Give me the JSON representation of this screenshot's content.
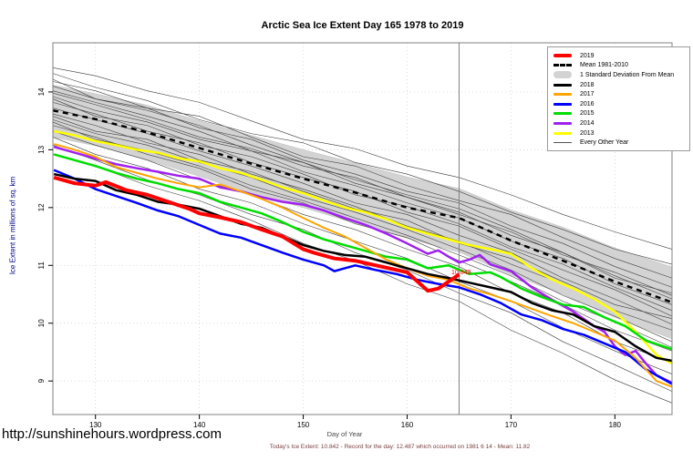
{
  "page": {
    "title": "Arctic Sea Ice Extent Day 165 1978 to 2019",
    "url_text": "http://sunshinehours.wordpress.com",
    "caption": "Today's Ice Extent: 10.842  - Record for the day: 12.487 which occurred on 1981 6 14  - Mean: 11.82"
  },
  "legend": {
    "items": [
      {
        "label": "2019",
        "kind": "thick",
        "color": "#ff0000"
      },
      {
        "label": "Mean 1981-2010",
        "kind": "dashed",
        "color": "#000000"
      },
      {
        "label": "1 Standard Deviation From Mean",
        "kind": "band",
        "color": "#d3d3d3"
      },
      {
        "label": "2018",
        "kind": "line",
        "color": "#000000"
      },
      {
        "label": "2017",
        "kind": "line",
        "color": "#ffa500"
      },
      {
        "label": "2016",
        "kind": "line",
        "color": "#0000ff"
      },
      {
        "label": "2015",
        "kind": "line",
        "color": "#00dd00"
      },
      {
        "label": "2014",
        "kind": "line",
        "color": "#a020f0"
      },
      {
        "label": "2013",
        "kind": "line",
        "color": "#ffff00"
      },
      {
        "label": "Every Other Year",
        "kind": "thin",
        "color": "#555555"
      }
    ]
  },
  "chart_data": {
    "type": "line",
    "title": "Arctic Sea Ice Extent Day 165 1978 to 2019",
    "xlabel": "Day of Year",
    "ylabel": "Ice Extent in millions of sq. km",
    "xlim": [
      125.9,
      185.5
    ],
    "ylim": [
      8.42,
      14.85
    ],
    "xticks": [
      130,
      140,
      150,
      160,
      170,
      180
    ],
    "yticks": [
      9,
      10,
      11,
      12,
      13,
      14
    ],
    "grid": "dotted",
    "legend_position": "top-right",
    "vline": {
      "x": 165,
      "color": "#808080"
    },
    "annotation": {
      "text": "10.842",
      "x": 165.2,
      "y": 10.88,
      "color": "#ff0000"
    },
    "band": {
      "label": "1 Standard Deviation From Mean",
      "color": "#d3d3d3",
      "x": [
        125.9,
        130,
        135,
        140,
        145,
        150,
        155,
        160,
        165,
        170,
        175,
        180,
        185.5
      ],
      "upper": [
        14.12,
        13.97,
        13.77,
        13.5,
        13.25,
        13.0,
        12.77,
        12.53,
        12.33,
        11.96,
        11.66,
        11.3,
        10.97
      ],
      "lower": [
        13.22,
        13.07,
        12.83,
        12.54,
        12.25,
        12.0,
        11.73,
        11.47,
        11.23,
        10.84,
        10.5,
        10.1,
        9.73
      ]
    },
    "series": [
      {
        "name": "2019",
        "color": "#ff0000",
        "width": 4,
        "dash": "",
        "x": [
          126,
          128,
          130,
          131,
          133,
          135,
          137,
          139,
          140,
          142,
          144,
          146,
          148,
          150,
          151,
          153,
          155,
          157,
          159,
          160,
          161,
          162,
          163,
          164,
          165
        ],
        "y": [
          12.52,
          12.42,
          12.38,
          12.44,
          12.3,
          12.22,
          12.1,
          11.98,
          11.9,
          11.83,
          11.75,
          11.62,
          11.5,
          11.28,
          11.22,
          11.12,
          11.08,
          11.0,
          10.92,
          10.88,
          10.72,
          10.56,
          10.6,
          10.72,
          10.842
        ]
      },
      {
        "name": "Mean 1981-2010",
        "color": "#000000",
        "width": 2.5,
        "dash": "6 5",
        "x": [
          125.9,
          130,
          135,
          140,
          145,
          150,
          155,
          160,
          165,
          170,
          175,
          180,
          185.5
        ],
        "y": [
          13.68,
          13.53,
          13.3,
          13.03,
          12.76,
          12.5,
          12.26,
          12.0,
          11.82,
          11.43,
          11.08,
          10.72,
          10.36
        ]
      },
      {
        "name": "2018",
        "color": "#000000",
        "width": 2.5,
        "dash": "",
        "x": [
          126,
          128,
          130,
          132,
          134,
          136,
          138,
          140,
          142,
          144,
          146,
          148,
          150,
          152,
          154,
          156,
          158,
          160,
          162,
          164,
          166,
          168,
          170,
          172,
          174,
          176,
          178,
          180,
          182,
          184,
          185.5
        ],
        "y": [
          12.58,
          12.5,
          12.46,
          12.3,
          12.22,
          12.1,
          12.05,
          11.98,
          11.85,
          11.72,
          11.65,
          11.5,
          11.35,
          11.25,
          11.18,
          11.15,
          11.05,
          10.95,
          10.85,
          10.78,
          10.7,
          10.62,
          10.54,
          10.35,
          10.22,
          10.15,
          9.95,
          9.85,
          9.6,
          9.4,
          9.35
        ]
      },
      {
        "name": "2017",
        "color": "#ffa500",
        "width": 2,
        "dash": "",
        "x": [
          126,
          128,
          130,
          132,
          134,
          136,
          138,
          140,
          142,
          144,
          146,
          148,
          150,
          152,
          154,
          156,
          158,
          160,
          162,
          164,
          166,
          168,
          170,
          172,
          174,
          176,
          178,
          180,
          182,
          184,
          185.5
        ],
        "y": [
          13.1,
          13.0,
          12.88,
          12.7,
          12.6,
          12.5,
          12.42,
          12.35,
          12.4,
          12.28,
          12.15,
          12.0,
          11.82,
          11.65,
          11.5,
          11.3,
          11.1,
          10.95,
          10.82,
          10.75,
          10.6,
          10.5,
          10.38,
          10.25,
          10.12,
          10.0,
          9.85,
          9.7,
          9.4,
          9.0,
          8.9
        ]
      },
      {
        "name": "2016",
        "color": "#0000ff",
        "width": 2.5,
        "dash": "",
        "x": [
          126,
          128,
          130,
          132,
          134,
          136,
          138,
          140,
          142,
          144,
          146,
          148,
          150,
          152,
          153,
          155,
          157,
          159,
          161,
          163,
          165,
          167,
          169,
          171,
          173,
          175,
          177,
          179,
          181,
          183,
          185.5
        ],
        "y": [
          12.65,
          12.5,
          12.32,
          12.2,
          12.08,
          11.95,
          11.85,
          11.7,
          11.55,
          11.48,
          11.35,
          11.22,
          11.1,
          11.0,
          10.9,
          11.0,
          10.92,
          10.85,
          10.75,
          10.68,
          10.62,
          10.5,
          10.35,
          10.15,
          10.05,
          9.9,
          9.8,
          9.65,
          9.5,
          9.2,
          8.95
        ]
      },
      {
        "name": "2015",
        "color": "#00dd00",
        "width": 2.5,
        "dash": "",
        "x": [
          126,
          128,
          130,
          132,
          134,
          136,
          138,
          140,
          142,
          144,
          146,
          148,
          150,
          152,
          154,
          156,
          158,
          160,
          162,
          164,
          166,
          168,
          169,
          171,
          173,
          175,
          177,
          179,
          181,
          183,
          185.5
        ],
        "y": [
          12.92,
          12.82,
          12.72,
          12.6,
          12.5,
          12.42,
          12.32,
          12.25,
          12.1,
          12.0,
          11.9,
          11.75,
          11.58,
          11.45,
          11.35,
          11.25,
          11.15,
          11.1,
          10.95,
          11.0,
          10.85,
          10.88,
          10.8,
          10.6,
          10.45,
          10.32,
          10.28,
          10.1,
          9.95,
          9.7,
          9.55
        ]
      },
      {
        "name": "2014",
        "color": "#a020f0",
        "width": 2.5,
        "dash": "",
        "x": [
          126,
          128,
          130,
          132,
          134,
          136,
          138,
          140,
          142,
          144,
          146,
          148,
          150,
          152,
          154,
          156,
          158,
          160,
          162,
          163,
          164,
          165,
          166,
          167,
          168,
          170,
          172,
          174,
          176,
          178,
          179,
          180,
          181,
          182,
          183,
          184,
          185.5
        ],
        "y": [
          13.05,
          12.95,
          12.85,
          12.75,
          12.68,
          12.62,
          12.55,
          12.5,
          12.35,
          12.28,
          12.18,
          12.1,
          12.05,
          11.95,
          11.82,
          11.7,
          11.55,
          11.38,
          11.2,
          11.26,
          11.15,
          11.05,
          11.1,
          11.18,
          11.02,
          10.9,
          10.62,
          10.4,
          10.2,
          9.95,
          9.85,
          9.6,
          9.45,
          9.52,
          9.3,
          9.1,
          8.97
        ]
      },
      {
        "name": "2013",
        "color": "#ffff00",
        "width": 2.5,
        "dash": "",
        "x": [
          126,
          128,
          130,
          132,
          134,
          136,
          138,
          140,
          142,
          144,
          146,
          148,
          150,
          152,
          154,
          156,
          158,
          160,
          162,
          164,
          166,
          168,
          170,
          172,
          174,
          176,
          178,
          180,
          182,
          184,
          185.5
        ],
        "y": [
          13.32,
          13.25,
          13.15,
          13.08,
          13.0,
          12.95,
          12.85,
          12.8,
          12.68,
          12.6,
          12.48,
          12.35,
          12.25,
          12.12,
          12.0,
          11.92,
          11.8,
          11.65,
          11.55,
          11.45,
          11.35,
          11.28,
          11.2,
          10.95,
          10.75,
          10.6,
          10.42,
          10.2,
          9.85,
          9.45,
          9.3
        ]
      }
    ],
    "every_other_year": {
      "label": "Every Other Year",
      "color": "#3c3c3c",
      "width": 0.6,
      "x": [
        125.9,
        130,
        135,
        140,
        145,
        150,
        155,
        160,
        165,
        170,
        175,
        180,
        185.5
      ],
      "lines": [
        [
          14.42,
          14.28,
          14.02,
          13.82,
          13.5,
          13.18,
          13.02,
          12.72,
          12.52,
          12.22,
          11.88,
          11.58,
          11.28
        ],
        [
          14.32,
          14.08,
          13.85,
          13.52,
          13.28,
          13.12,
          12.78,
          12.58,
          12.28,
          11.92,
          11.62,
          11.28,
          11.02
        ],
        [
          14.18,
          14.02,
          13.72,
          13.58,
          13.22,
          12.88,
          12.72,
          12.38,
          12.12,
          11.88,
          11.48,
          11.12,
          10.78
        ],
        [
          14.1,
          13.88,
          13.72,
          13.38,
          13.18,
          12.82,
          12.58,
          12.28,
          12.08,
          11.68,
          11.38,
          10.98,
          10.62
        ],
        [
          14.02,
          13.82,
          13.58,
          13.32,
          12.98,
          12.78,
          12.42,
          12.18,
          11.88,
          11.58,
          11.18,
          10.88,
          10.48
        ],
        [
          13.92,
          13.68,
          13.48,
          13.18,
          12.98,
          12.62,
          12.38,
          12.08,
          11.82,
          11.42,
          11.12,
          10.68,
          10.32
        ],
        [
          13.82,
          13.62,
          13.32,
          13.12,
          12.78,
          12.52,
          12.28,
          11.92,
          11.68,
          11.28,
          10.92,
          10.58,
          10.12
        ],
        [
          13.72,
          13.52,
          13.28,
          12.98,
          12.72,
          12.42,
          12.08,
          11.88,
          11.52,
          11.22,
          10.78,
          10.42,
          9.98
        ],
        [
          13.62,
          13.42,
          13.12,
          12.92,
          12.58,
          12.32,
          12.02,
          11.68,
          11.42,
          11.02,
          10.68,
          10.22,
          9.88
        ],
        [
          13.52,
          13.28,
          13.08,
          12.78,
          12.52,
          12.18,
          11.92,
          11.62,
          11.28,
          10.92,
          10.48,
          10.12,
          9.68
        ],
        [
          13.42,
          13.22,
          12.92,
          12.68,
          12.32,
          12.08,
          11.72,
          11.48,
          11.08,
          10.72,
          10.32,
          9.88,
          9.52
        ],
        [
          13.32,
          13.08,
          12.82,
          12.48,
          12.22,
          11.88,
          11.62,
          11.28,
          10.98,
          10.52,
          10.18,
          9.68,
          9.32
        ],
        [
          13.22,
          12.92,
          12.68,
          12.32,
          12.08,
          11.72,
          11.42,
          11.12,
          10.72,
          10.38,
          9.92,
          9.52,
          9.12
        ],
        [
          13.08,
          12.82,
          12.48,
          12.22,
          11.88,
          11.62,
          11.22,
          10.92,
          10.52,
          10.18,
          9.68,
          9.28,
          8.82
        ],
        [
          12.92,
          12.72,
          12.38,
          12.12,
          11.78,
          11.38,
          11.08,
          10.68,
          10.38,
          9.88,
          9.48,
          9.02,
          8.62
        ],
        [
          14.22,
          13.88,
          13.68,
          13.42,
          13.08,
          12.78,
          12.48,
          12.22,
          11.98,
          11.62,
          11.22,
          10.82,
          10.42
        ],
        [
          13.98,
          13.78,
          13.52,
          13.22,
          13.02,
          12.72,
          12.52,
          12.18,
          11.92,
          11.52,
          11.22,
          10.78,
          10.52
        ],
        [
          13.58,
          13.32,
          13.18,
          12.82,
          12.62,
          12.28,
          11.98,
          11.78,
          11.38,
          11.12,
          10.72,
          10.32,
          10.08
        ],
        [
          13.88,
          13.58,
          13.42,
          13.08,
          12.88,
          12.58,
          12.22,
          12.02,
          11.72,
          11.32,
          11.02,
          10.62,
          10.22
        ],
        [
          13.48,
          13.18,
          12.98,
          12.72,
          12.38,
          12.12,
          11.82,
          11.52,
          11.18,
          10.82,
          10.38,
          10.02,
          9.58
        ]
      ]
    }
  }
}
